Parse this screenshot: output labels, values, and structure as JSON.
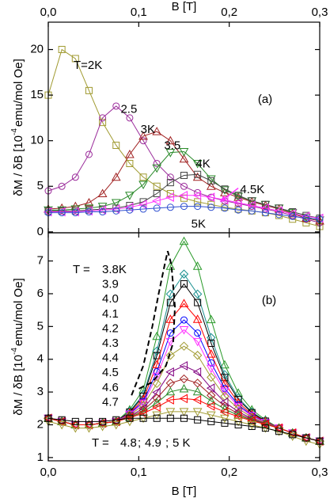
{
  "chart_data": [
    {
      "type": "line",
      "panel_label": "(a)",
      "xlabel": "B [T]",
      "ylabel_prefix": "δM / δB [10",
      "ylabel_exp": "-4",
      "ylabel_suffix": "emu/mol Oe]",
      "xlim": [
        0,
        0.3
      ],
      "ylim": [
        -0.1,
        23
      ],
      "xticks": [
        {
          "value": 0,
          "label": "0,0"
        },
        {
          "value": 0.1,
          "label": "0,1"
        },
        {
          "value": 0.2,
          "label": "0,2"
        },
        {
          "value": 0.3,
          "label": "0,3"
        }
      ],
      "yticks": [
        0,
        5,
        10,
        15,
        20
      ],
      "x": [
        0,
        0.015,
        0.03,
        0.045,
        0.06,
        0.075,
        0.09,
        0.105,
        0.12,
        0.135,
        0.15,
        0.165,
        0.18,
        0.195,
        0.21,
        0.225,
        0.24,
        0.255,
        0.27,
        0.285,
        0.3
      ],
      "series": [
        {
          "name": "T=2K",
          "color": "#a09a30",
          "marker": "square",
          "values": [
            15,
            20,
            19,
            15.5,
            12,
            9.5,
            7.5,
            6,
            5,
            4.2,
            3.7,
            3.3,
            3.0,
            2.7,
            2.5,
            2.3,
            2.1,
            1.8,
            1.4,
            1.0,
            0.6
          ]
        },
        {
          "name": "2.5",
          "color": "#9a2a9a",
          "marker": "circle",
          "values": [
            4.5,
            5,
            6,
            8.5,
            12.5,
            13.8,
            12.5,
            10,
            7.5,
            6,
            5,
            4.3,
            3.8,
            3.4,
            3.1,
            2.8,
            2.5,
            2.2,
            1.8,
            1.4,
            1.0
          ]
        },
        {
          "name": "3K",
          "color": "#a02020",
          "marker": "triangle",
          "values": [
            2.5,
            2.6,
            2.8,
            3.2,
            4.2,
            6,
            8.5,
            10.5,
            11,
            10,
            8,
            6,
            5,
            4.3,
            3.8,
            3.3,
            2.9,
            2.5,
            2.0,
            1.5,
            1.2
          ]
        },
        {
          "name": "3.5",
          "color": "#2a8a2a",
          "marker": "triangle-down",
          "values": [
            2.4,
            2.4,
            2.5,
            2.6,
            2.8,
            3.2,
            4,
            5.2,
            7,
            8.7,
            8.8,
            7.5,
            5.8,
            4.6,
            3.9,
            3.4,
            3.0,
            2.6,
            2.1,
            1.6,
            1.3
          ]
        },
        {
          "name": "4K",
          "color": "#444444",
          "marker": "square",
          "values": [
            2.3,
            2.3,
            2.3,
            2.4,
            2.5,
            2.6,
            2.9,
            3.3,
            4.2,
            5.4,
            6.2,
            6.3,
            5.6,
            4.7,
            4,
            3.4,
            3,
            2.6,
            2.2,
            1.8,
            1.5
          ]
        },
        {
          "name": "4.5K",
          "color": "#ff30ff",
          "marker": "triangle-left",
          "values": [
            2.2,
            2.2,
            2.2,
            2.3,
            2.4,
            2.5,
            2.7,
            3.0,
            3.4,
            3.8,
            4.0,
            4.0,
            3.8,
            3.5,
            3.2,
            2.9,
            2.6,
            2.3,
            2.0,
            1.7,
            1.5
          ]
        },
        {
          "name": "5K",
          "color": "#3050d0",
          "marker": "circle",
          "values": [
            2.1,
            2.1,
            2.1,
            2.2,
            2.2,
            2.3,
            2.4,
            2.5,
            2.6,
            2.7,
            2.8,
            2.8,
            2.7,
            2.6,
            2.4,
            2.3,
            2.1,
            1.9,
            1.7,
            1.5,
            1.4
          ]
        }
      ]
    },
    {
      "type": "line",
      "panel_label": "(b)",
      "xlabel": "B [T]",
      "ylabel_prefix": "δM / δB [10",
      "ylabel_exp": "-4",
      "ylabel_suffix": "emu/mol Oe]",
      "legend_prefix": "T =",
      "legend_separator": ";",
      "xlim": [
        0,
        0.3
      ],
      "ylim": [
        0.9,
        7.86
      ],
      "xticks": [
        {
          "value": 0,
          "label": "0,0"
        },
        {
          "value": 0.1,
          "label": "0,1"
        },
        {
          "value": 0.2,
          "label": "0,2"
        },
        {
          "value": 0.3,
          "label": "0,3"
        }
      ],
      "yticks": [
        1,
        2,
        3,
        4,
        5,
        6,
        7
      ],
      "x": [
        0,
        0.015,
        0.03,
        0.045,
        0.06,
        0.075,
        0.09,
        0.105,
        0.12,
        0.135,
        0.15,
        0.165,
        0.18,
        0.195,
        0.21,
        0.225,
        0.24,
        0.255,
        0.27,
        0.285,
        0.3
      ],
      "series": [
        {
          "name": "3.8K",
          "color": "#2a9a2a",
          "marker": "triangle",
          "values": [
            2.2,
            2.1,
            2.0,
            2.0,
            2.05,
            2.1,
            2.46,
            3.07,
            4.7,
            6.84,
            7.6,
            6.84,
            5.21,
            3.83,
            2.97,
            2.46,
            2.15,
            1.9,
            1.75,
            1.6,
            1.5
          ]
        },
        {
          "name": "3.9",
          "color": "#1a9090",
          "marker": "diamond",
          "values": [
            2.2,
            2.1,
            2.0,
            2.0,
            2.05,
            2.1,
            2.41,
            2.92,
            4.25,
            5.99,
            6.6,
            5.99,
            4.66,
            3.53,
            2.82,
            2.39,
            2.12,
            1.9,
            1.75,
            1.6,
            1.5
          ]
        },
        {
          "name": "4.0",
          "color": "#000000",
          "marker": "square",
          "values": [
            2.2,
            2.1,
            2.0,
            2.0,
            2.05,
            2.1,
            2.39,
            2.87,
            4.11,
            5.73,
            6.3,
            5.73,
            4.49,
            3.44,
            2.77,
            2.37,
            2.11,
            1.9,
            1.75,
            1.6,
            1.5
          ]
        },
        {
          "name": "4.1",
          "color": "#ff0000",
          "marker": "triangle",
          "values": [
            2.2,
            2.1,
            2.0,
            2.0,
            2.05,
            2.1,
            2.36,
            2.78,
            3.84,
            5.22,
            5.7,
            5.22,
            4.16,
            3.26,
            2.68,
            2.32,
            2.1,
            1.9,
            1.75,
            1.6,
            1.5
          ]
        },
        {
          "name": "4.2",
          "color": "#0000ff",
          "marker": "circle",
          "values": [
            2.2,
            2.1,
            2.0,
            2.0,
            2.05,
            2.1,
            2.34,
            2.71,
            3.62,
            4.8,
            5.2,
            4.8,
            3.89,
            3.11,
            2.61,
            2.29,
            2.08,
            1.9,
            1.75,
            1.6,
            1.5
          ]
        },
        {
          "name": "4.3",
          "color": "#ff30ff",
          "marker": "triangle-down",
          "values": [
            2.2,
            2.1,
            2.0,
            2.0,
            2.05,
            2.1,
            2.32,
            2.66,
            3.48,
            4.54,
            4.9,
            4.54,
            3.72,
            3.02,
            2.56,
            2.27,
            2.07,
            1.9,
            1.75,
            1.6,
            1.5
          ]
        },
        {
          "name": "4.4",
          "color": "#a09a30",
          "marker": "diamond",
          "values": [
            2.2,
            2.1,
            2.0,
            2.0,
            2.05,
            2.1,
            2.3,
            2.59,
            3.26,
            4.12,
            4.4,
            4.12,
            3.45,
            2.87,
            2.49,
            2.23,
            2.06,
            1.9,
            1.75,
            1.6,
            1.5
          ]
        },
        {
          "name": "4.5",
          "color": "#800080",
          "marker": "triangle-left",
          "values": [
            2.2,
            2.1,
            2.0,
            2.0,
            2.05,
            2.1,
            2.27,
            2.5,
            2.99,
            3.61,
            3.8,
            3.61,
            3.12,
            2.69,
            2.4,
            2.19,
            2.04,
            1.9,
            1.75,
            1.6,
            1.5
          ]
        },
        {
          "name": "4.6",
          "color": "#a02020",
          "marker": "diamond",
          "values": [
            2.2,
            2.1,
            2.0,
            2.0,
            2.05,
            2.1,
            2.25,
            2.44,
            2.81,
            3.27,
            3.4,
            3.27,
            2.9,
            2.57,
            2.34,
            2.16,
            2.03,
            1.9,
            1.75,
            1.6,
            1.5
          ]
        },
        {
          "name": "4.7",
          "color": "#2a8a2a",
          "marker": "triangle",
          "values": [
            2.2,
            2.1,
            2.0,
            2.0,
            2.05,
            2.1,
            2.23,
            2.39,
            2.67,
            3.01,
            3.1,
            3.01,
            2.73,
            2.48,
            2.29,
            2.14,
            2.02,
            1.9,
            1.75,
            1.6,
            1.5
          ]
        },
        {
          "name": "4.8",
          "color": "#ff0000",
          "marker": "triangle-left",
          "values": [
            2.2,
            2.1,
            2.0,
            2.0,
            2.05,
            2.1,
            2.22,
            2.35,
            2.54,
            2.76,
            2.8,
            2.76,
            2.57,
            2.39,
            2.25,
            2.12,
            2.01,
            1.9,
            1.75,
            1.6,
            1.5
          ]
        },
        {
          "name": "4.9",
          "color": "#a09a30",
          "marker": "triangle-down",
          "values": [
            2.1,
            2.0,
            1.9,
            1.9,
            1.95,
            2.0,
            2.1,
            2.2,
            2.3,
            2.4,
            2.4,
            2.4,
            2.3,
            2.2,
            2.1,
            2.0,
            1.9,
            1.8,
            1.65,
            1.5,
            1.4
          ]
        },
        {
          "name": "5 K",
          "color": "#000000",
          "marker": "square",
          "values": [
            2.2,
            2.15,
            2.1,
            2.1,
            2.1,
            2.15,
            2.2,
            2.2,
            2.2,
            2.2,
            2.2,
            2.15,
            2.1,
            2.05,
            2.0,
            1.95,
            1.9,
            1.8,
            1.7,
            1.6,
            1.5
          ]
        }
      ],
      "dashed_line": {
        "x": [
          0.092,
          0.105,
          0.115,
          0.122,
          0.128,
          0.132,
          0.136,
          0.14,
          0.138,
          0.13,
          0.115,
          0.1
        ],
        "y": [
          2.9,
          3.8,
          5.0,
          6.0,
          6.8,
          7.3,
          6.9,
          5.6,
          4.5,
          3.8,
          3.3,
          3.1
        ]
      }
    }
  ]
}
